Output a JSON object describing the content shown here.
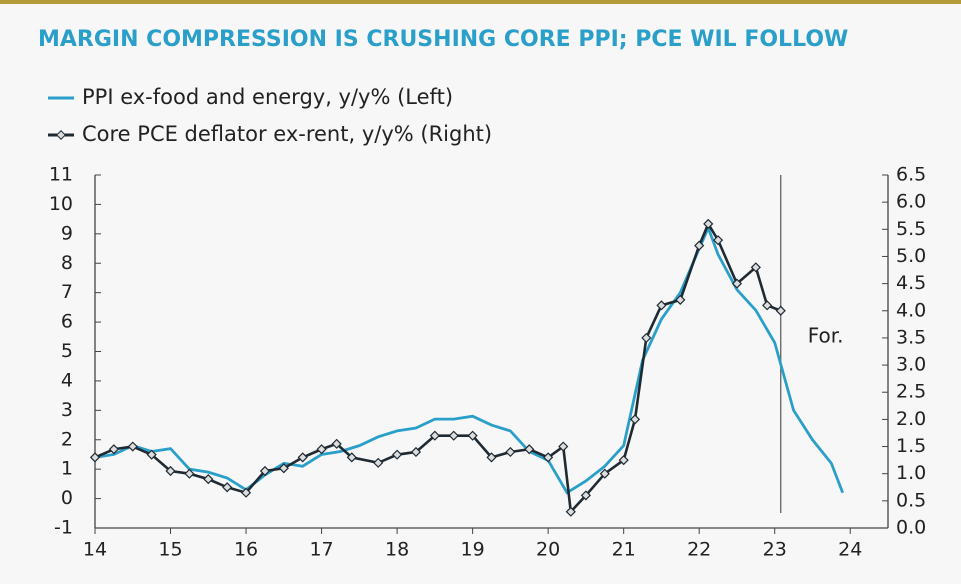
{
  "chart_data": {
    "type": "line",
    "title": "MARGIN COMPRESSION IS CRUSHING CORE PPI; PCE WIL FOLLOW",
    "annotation": "For.",
    "vline": 23.08,
    "xlim": [
      14,
      24.5
    ],
    "xticks": [
      14,
      15,
      16,
      17,
      18,
      19,
      20,
      21,
      22,
      23,
      24
    ],
    "ylim": [
      -1,
      11
    ],
    "yticks": [
      -1,
      0,
      1,
      2,
      3,
      4,
      5,
      6,
      7,
      8,
      9,
      10,
      11
    ],
    "y2lim": [
      0,
      6.5
    ],
    "y2ticks": [
      {
        "value": 0,
        "label": "0.0"
      },
      0.5,
      {
        "value": 1,
        "label": "1.0"
      },
      1.5,
      {
        "value": 2,
        "label": "2.0"
      },
      2.5,
      {
        "value": 3,
        "label": "3.0"
      },
      3.5,
      {
        "value": 4,
        "label": "4.0"
      },
      4.5,
      {
        "value": 5,
        "label": "5.0"
      },
      5.5,
      {
        "value": 6,
        "label": "6.0"
      },
      6.5
    ],
    "series": [
      {
        "name": "PPI ex-food and energy, y/y% (Left)",
        "color": "#2a9fc9",
        "axis": "y",
        "x": [
          14,
          14.25,
          14.5,
          14.75,
          15,
          15.25,
          15.5,
          15.75,
          16,
          16.25,
          16.5,
          16.75,
          17,
          17.25,
          17.5,
          17.75,
          18,
          18.25,
          18.5,
          18.75,
          19,
          19.25,
          19.5,
          19.75,
          20,
          20.25,
          20.5,
          20.75,
          21,
          21.25,
          21.5,
          21.75,
          22,
          22.12,
          22.25,
          22.5,
          22.75,
          23,
          23.25,
          23.5,
          23.75,
          23.9
        ],
        "values": [
          1.4,
          1.5,
          1.8,
          1.6,
          1.7,
          1.0,
          0.9,
          0.7,
          0.3,
          0.8,
          1.2,
          1.1,
          1.5,
          1.6,
          1.8,
          2.1,
          2.3,
          2.4,
          2.7,
          2.7,
          2.8,
          2.5,
          2.3,
          1.6,
          1.3,
          0.2,
          0.6,
          1.1,
          1.8,
          4.7,
          6.1,
          7.0,
          8.5,
          9.2,
          8.3,
          7.1,
          6.4,
          5.3,
          3.0,
          2.0,
          1.2,
          0.2
        ]
      },
      {
        "name": "Core PCE deflator ex-rent, y/y% (Right)",
        "color": "#1f2a33",
        "axis": "y2",
        "x": [
          14,
          14.25,
          14.5,
          14.75,
          15,
          15.25,
          15.5,
          15.75,
          16,
          16.25,
          16.5,
          16.75,
          17,
          17.2,
          17.4,
          17.75,
          18,
          18.25,
          18.5,
          18.75,
          19,
          19.25,
          19.5,
          19.75,
          20,
          20.2,
          20.3,
          20.5,
          20.75,
          21,
          21.15,
          21.3,
          21.5,
          21.75,
          22,
          22.12,
          22.25,
          22.5,
          22.75,
          22.9,
          23.08
        ],
        "values": [
          1.3,
          1.45,
          1.5,
          1.35,
          1.05,
          1.0,
          0.9,
          0.75,
          0.65,
          1.05,
          1.1,
          1.3,
          1.45,
          1.55,
          1.3,
          1.2,
          1.35,
          1.4,
          1.7,
          1.7,
          1.7,
          1.3,
          1.4,
          1.45,
          1.3,
          1.5,
          0.3,
          0.6,
          1.0,
          1.25,
          2.0,
          3.5,
          4.1,
          4.2,
          5.2,
          5.6,
          5.3,
          4.5,
          4.8,
          4.1,
          4.0
        ]
      }
    ]
  }
}
